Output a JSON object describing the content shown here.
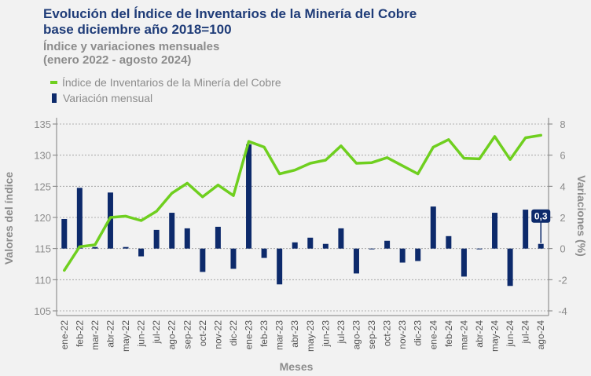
{
  "title_line1": "Evolución del Índice de Inventarios de la Minería del Cobre",
  "title_line2": "base diciembre año 2018=100",
  "subtitle_line1": "Índice y variaciones mensuales",
  "subtitle_line2": "(enero 2022 - agosto 2024)",
  "colors": {
    "line": "#6fcf1f",
    "bar": "#0d2a6b",
    "title": "#1f3c78",
    "axis_text": "#8c8c8c"
  },
  "chart_data": {
    "type": "bar+line",
    "categories": [
      "ene-22",
      "feb-22",
      "mar-22",
      "abr-22",
      "may-22",
      "jun-22",
      "jul-22",
      "ago-22",
      "sep-22",
      "oct-22",
      "nov-22",
      "dic-22",
      "ene-23",
      "feb-23",
      "mar-23",
      "abr-23",
      "may-23",
      "jun-23",
      "jul-23",
      "ago-23",
      "sep-23",
      "oct-23",
      "nov-23",
      "dic-23",
      "ene-24",
      "feb-24",
      "mar-24",
      "abr-24",
      "may-24",
      "jun-24",
      "jul-24",
      "ago-24"
    ],
    "series": [
      {
        "name": "Índice de Inventarios de la Minería del Cobre",
        "type": "line",
        "axis": "left",
        "values": [
          111.5,
          115.3,
          115.6,
          120.0,
          120.2,
          119.5,
          121.0,
          123.9,
          125.5,
          123.3,
          125.2,
          123.5,
          132.2,
          131.3,
          127.0,
          127.6,
          128.7,
          129.2,
          131.5,
          128.7,
          128.8,
          129.6,
          128.3,
          127.0,
          131.3,
          132.5,
          129.5,
          129.4,
          133.0,
          129.3,
          132.8,
          133.2
        ]
      },
      {
        "name": "Variación mensual",
        "type": "bar",
        "axis": "right",
        "values": [
          1.9,
          3.9,
          0.1,
          3.6,
          0.1,
          -0.5,
          1.2,
          2.3,
          1.3,
          -1.5,
          1.4,
          -1.3,
          6.7,
          -0.6,
          -2.3,
          0.4,
          0.7,
          0.3,
          1.3,
          -1.6,
          0.0,
          0.5,
          -0.9,
          -0.8,
          2.7,
          0.8,
          -1.8,
          0.0,
          2.3,
          -2.4,
          2.5,
          0.3
        ]
      }
    ],
    "data_labels": [
      {
        "category": "ago-24",
        "series": "Variación mensual",
        "text": "0,3"
      }
    ],
    "xlabel": "Meses",
    "ylabel": "Valores del índice",
    "y2label": "Variaciones (%)",
    "ylim": [
      105,
      135
    ],
    "y2lim": [
      -4,
      8
    ],
    "yticks": [
      105,
      110,
      115,
      120,
      125,
      130,
      135
    ],
    "y2ticks": [
      "-4",
      "-2",
      "0",
      "2",
      "4",
      "6",
      "8"
    ],
    "grid": true,
    "legend_placement": "top-left"
  }
}
